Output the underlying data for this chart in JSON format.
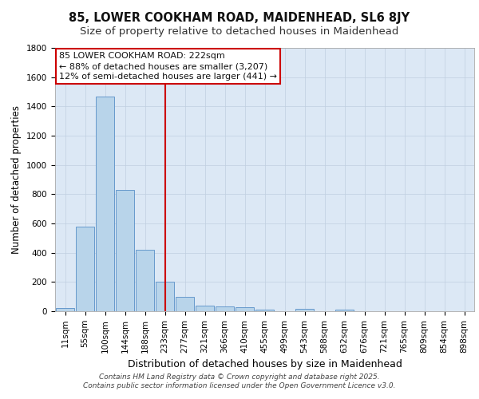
{
  "title": "85, LOWER COOKHAM ROAD, MAIDENHEAD, SL6 8JY",
  "subtitle": "Size of property relative to detached houses in Maidenhead",
  "xlabel": "Distribution of detached houses by size in Maidenhead",
  "ylabel": "Number of detached properties",
  "categories": [
    "11sqm",
    "55sqm",
    "100sqm",
    "144sqm",
    "188sqm",
    "233sqm",
    "277sqm",
    "321sqm",
    "366sqm",
    "410sqm",
    "455sqm",
    "499sqm",
    "543sqm",
    "588sqm",
    "632sqm",
    "676sqm",
    "721sqm",
    "765sqm",
    "809sqm",
    "854sqm",
    "898sqm"
  ],
  "values": [
    20,
    580,
    1470,
    830,
    420,
    200,
    100,
    40,
    35,
    25,
    10,
    0,
    15,
    0,
    10,
    0,
    0,
    0,
    0,
    0,
    0
  ],
  "bar_color": "#b8d4ea",
  "bar_edge_color": "#6699cc",
  "background_color": "#dce8f5",
  "grid_color": "#c0cfe0",
  "red_line_index": 5.0,
  "annotation_line1": "85 LOWER COOKHAM ROAD: 222sqm",
  "annotation_line2": "← 88% of detached houses are smaller (3,207)",
  "annotation_line3": "12% of semi-detached houses are larger (441) →",
  "ylim": [
    0,
    1800
  ],
  "yticks": [
    0,
    200,
    400,
    600,
    800,
    1000,
    1200,
    1400,
    1600,
    1800
  ],
  "footer_line1": "Contains HM Land Registry data © Crown copyright and database right 2025.",
  "footer_line2": "Contains public sector information licensed under the Open Government Licence v3.0.",
  "title_fontsize": 10.5,
  "subtitle_fontsize": 9.5,
  "ylabel_fontsize": 8.5,
  "xlabel_fontsize": 9,
  "tick_fontsize": 7.5,
  "annotation_fontsize": 8,
  "footer_fontsize": 6.5
}
